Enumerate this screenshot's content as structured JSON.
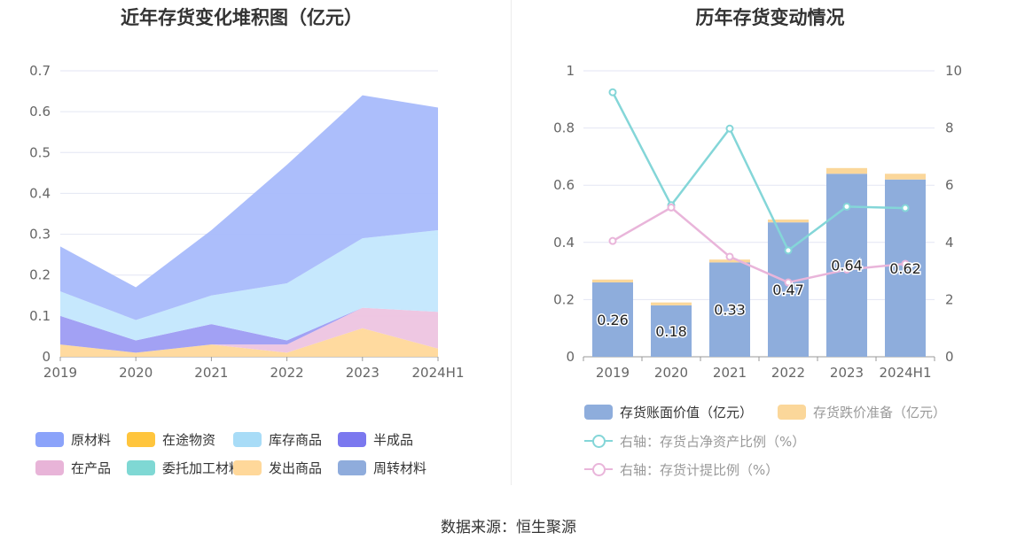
{
  "left_title": "近年存货变化堆积图（亿元）",
  "right_title": "历年存货变动情况",
  "source": "数据来源：恒生聚源",
  "chart_data": [
    {
      "type": "area",
      "title": "近年存货变化堆积图（亿元）",
      "x": [
        "2019",
        "2020",
        "2021",
        "2022",
        "2023",
        "2024H1"
      ],
      "ylim": [
        0,
        0.7
      ],
      "yticks": [
        "0",
        "0.1",
        "0.2",
        "0.3",
        "0.4",
        "0.5",
        "0.6",
        "0.7"
      ],
      "grid": true,
      "legend_position": "bottom",
      "stacked": true,
      "series": [
        {
          "name": "发出商品",
          "color": "#ffd89a",
          "values": [
            0.03,
            0.01,
            0.03,
            0.01,
            0.07,
            0.02
          ]
        },
        {
          "name": "在产品",
          "color": "#edc4e0",
          "values": [
            0.0,
            0.0,
            0.0,
            0.02,
            0.05,
            0.09
          ]
        },
        {
          "name": "半成品",
          "color": "#9d9cf3",
          "values": [
            0.07,
            0.03,
            0.05,
            0.01,
            0.0,
            0.0
          ]
        },
        {
          "name": "库存商品",
          "color": "#c3e7fd",
          "values": [
            0.06,
            0.05,
            0.07,
            0.14,
            0.17,
            0.2
          ]
        },
        {
          "name": "原材料",
          "color": "#a8bafb",
          "values": [
            0.11,
            0.08,
            0.16,
            0.29,
            0.35,
            0.3
          ]
        },
        {
          "name": "在途物资",
          "color": "#ffc53d",
          "values": [
            0,
            0,
            0,
            0,
            0,
            0
          ]
        },
        {
          "name": "委托加工材料",
          "color": "#7fd8d4",
          "values": [
            0,
            0,
            0,
            0,
            0,
            0
          ]
        },
        {
          "name": "周转材料",
          "color": "#8facdc",
          "values": [
            0,
            0,
            0,
            0,
            0,
            0
          ]
        }
      ],
      "legend": [
        {
          "name": "原材料",
          "color": "#8ba3fa"
        },
        {
          "name": "在途物资",
          "color": "#ffc53d"
        },
        {
          "name": "库存商品",
          "color": "#a8dcf7"
        },
        {
          "name": "半成品",
          "color": "#7b78ef"
        },
        {
          "name": "在产品",
          "color": "#e8b4d8"
        },
        {
          "name": "委托加工材料",
          "color": "#7fd8d4"
        },
        {
          "name": "发出商品",
          "color": "#ffd89a"
        },
        {
          "name": "周转材料",
          "color": "#8facdc"
        }
      ]
    },
    {
      "type": "bar",
      "title": "历年存货变动情况",
      "categories": [
        "2019",
        "2020",
        "2021",
        "2022",
        "2023",
        "2024H1"
      ],
      "ylim": [
        0,
        1
      ],
      "yticks": [
        "0",
        "0.2",
        "0.4",
        "0.6",
        "0.8",
        "1"
      ],
      "y2lim": [
        0,
        10
      ],
      "y2ticks": [
        "0",
        "2",
        "4",
        "6",
        "8",
        "10"
      ],
      "grid": true,
      "legend_position": "bottom",
      "series": [
        {
          "name": "存货账面价值（亿元）",
          "kind": "bar",
          "color": "#8eaddc",
          "values": [
            0.26,
            0.18,
            0.33,
            0.47,
            0.64,
            0.62
          ],
          "labels": [
            "0.26",
            "0.18",
            "0.33",
            "0.47",
            "0.64",
            "0.62"
          ]
        },
        {
          "name": "存货跌价准备（亿元）",
          "kind": "bar",
          "color": "#fbd79a",
          "values": [
            0.01,
            0.01,
            0.01,
            0.01,
            0.02,
            0.02
          ]
        },
        {
          "name": "右轴：存货占净资产比例（%）",
          "kind": "line",
          "axis": "right",
          "color": "#84d6d8",
          "values": [
            9.25,
            5.3,
            7.98,
            3.72,
            5.25,
            5.2
          ]
        },
        {
          "name": "右轴：存货计提比例（%）",
          "kind": "line",
          "axis": "right",
          "color": "#e9b5da",
          "values": [
            4.05,
            5.22,
            3.5,
            2.6,
            3.05,
            3.25
          ]
        }
      ]
    }
  ]
}
